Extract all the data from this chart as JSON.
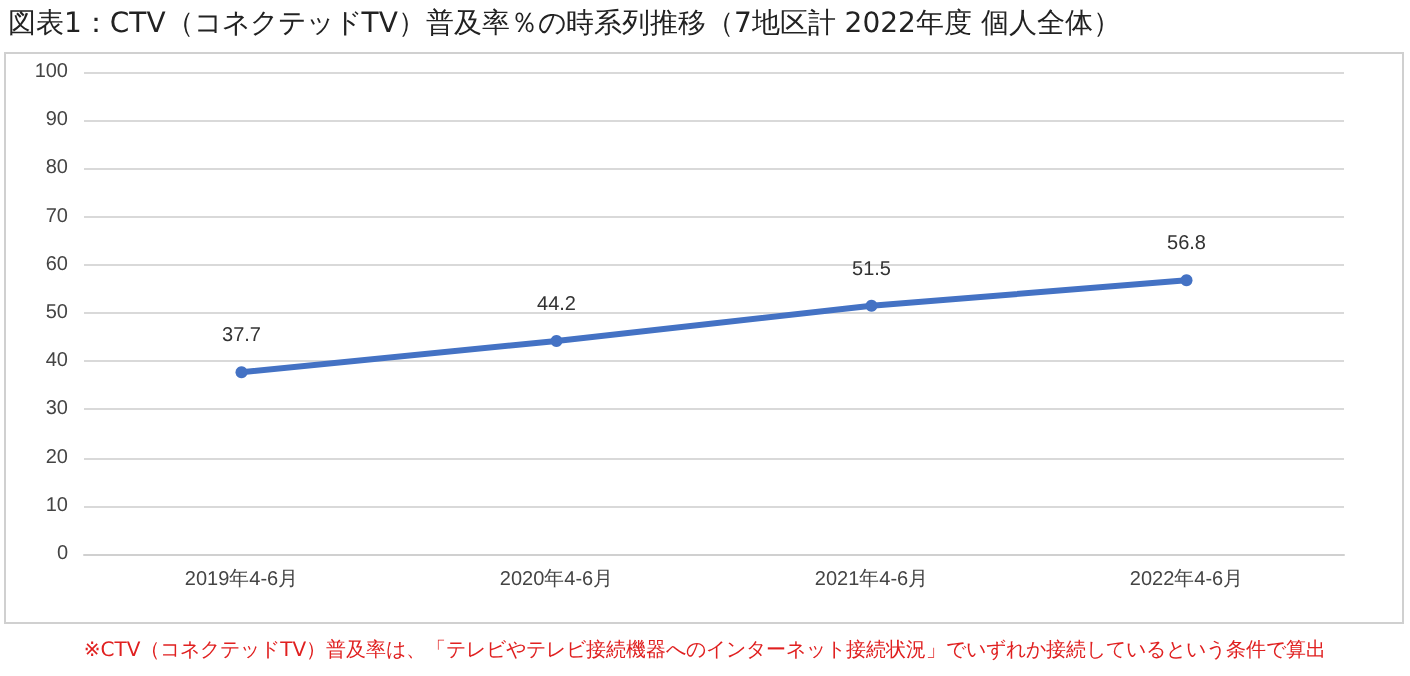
{
  "chart_data": {
    "type": "line",
    "title": "図表1：CTV（コネクテッドTV）普及率％の時系列推移（7地区計 2022年度 個人全体）",
    "categories": [
      "2019年4-6月",
      "2020年4-6月",
      "2021年4-6月",
      "2022年4-6月"
    ],
    "series": [
      {
        "color": "#4472c4",
        "values": [
          37.7,
          44.2,
          51.5,
          56.8
        ]
      }
    ],
    "ylim": [
      0,
      100
    ],
    "yticks": [
      0,
      10,
      20,
      30,
      40,
      50,
      60,
      70,
      80,
      90,
      100
    ],
    "grid": "y",
    "marker": "circle",
    "data_labels": true,
    "annotations": [
      "※CTV（コネクテッドTV）普及率は、「テレビやテレビ接続機器へのインターネット接続状況」でいずれか接続しているという条件で算出"
    ]
  }
}
